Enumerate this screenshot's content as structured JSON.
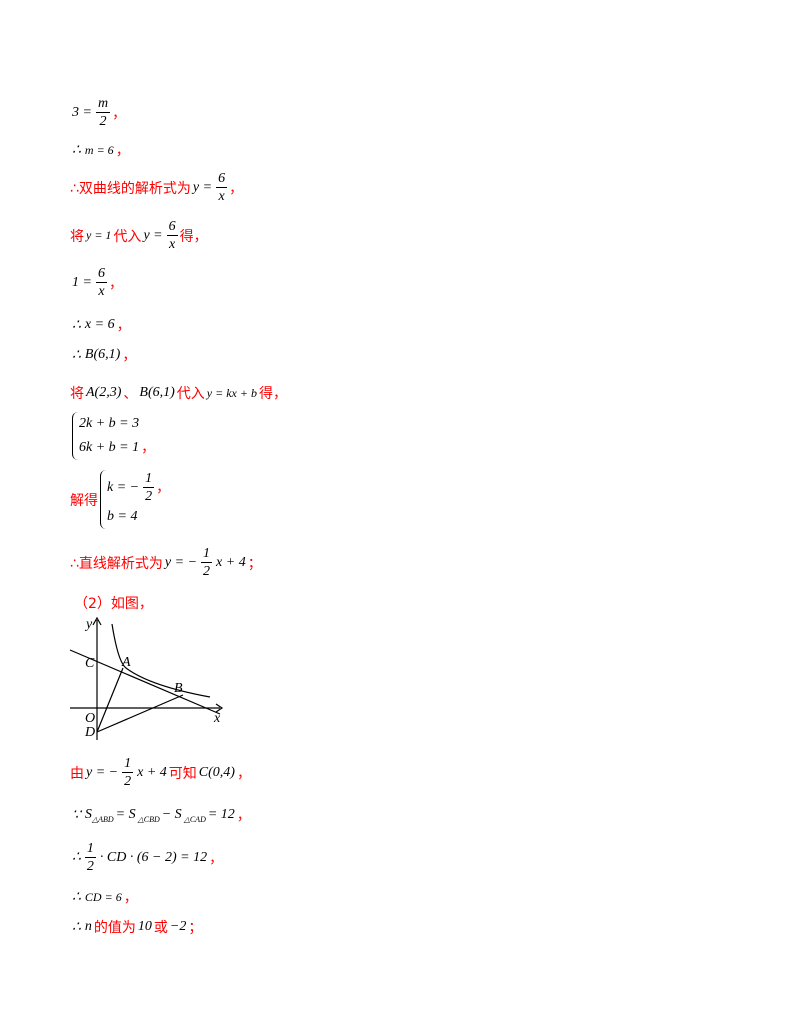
{
  "lines": [
    [
      "3 =",
      "m",
      "2",
      "，"
    ],
    [
      "∴",
      "m = 6",
      "，"
    ],
    [
      "∴双曲线的解析式为",
      "y =",
      "6",
      "x",
      "，"
    ],
    [
      "将",
      "y = 1",
      "代入",
      "y =",
      "6",
      "x",
      "得，"
    ],
    [
      "1 =",
      "6",
      "x",
      "，"
    ],
    [
      "∴",
      "x = 6",
      "，"
    ],
    [
      "∴",
      "B(6,1)",
      "，"
    ],
    [
      "将",
      "A(2,3)",
      "、",
      "B(6,1)",
      "代入",
      "y = kx + b",
      "得，"
    ],
    [
      "2k + b = 3",
      "6k + b = 1",
      "，"
    ],
    [
      "解得",
      "k = −",
      "1",
      "2",
      "，",
      "b = 4"
    ],
    [
      "∴直线解析式为",
      "y = −",
      "1",
      "2",
      "x + 4",
      "；"
    ],
    [
      "（2）如图，"
    ],
    [
      "由",
      "y = −",
      "1",
      "2",
      "x + 4",
      "可知",
      "C(0,4)",
      "，"
    ],
    [
      "∵",
      "S",
      "△ABD",
      "= S",
      "△CBD",
      "− S",
      "△CAD",
      "= 12",
      "，"
    ],
    [
      "∴",
      "1",
      "2",
      "· CD · (6 − 2) = 12",
      "，"
    ],
    [
      "∴",
      "CD = 6",
      "，"
    ],
    [
      "∴",
      "n",
      "的值为",
      "10",
      "或",
      "−2",
      "；"
    ]
  ],
  "figure": {
    "labels": [
      "y",
      "C",
      "A",
      "B",
      "O",
      "D",
      "x"
    ]
  }
}
